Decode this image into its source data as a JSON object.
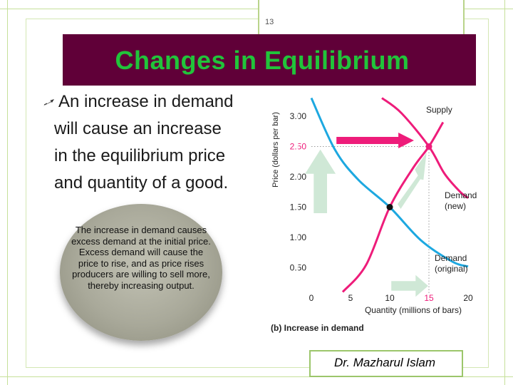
{
  "slide": {
    "page_number": "13",
    "title": "Changes in Equilibrium",
    "bullet": {
      "lines": [
        "An increase in demand",
        "will cause an increase",
        "in the equilibrium price",
        "and quantity of a good."
      ]
    },
    "callout": "The increase in demand causes excess demand at the initial price. Excess demand will cause the price to rise, and as price rises producers are willing to sell more, thereby increasing output.",
    "author": "Dr. Mazharul Islam"
  },
  "colors": {
    "title_bar": "#600038",
    "title_text": "#21c43a",
    "supply": "#ee1c7a",
    "demand": "#1da8e0",
    "arrow_pink": "#ee1c7a",
    "arrow_green": "#cfe8d6"
  },
  "chart_data": {
    "type": "line",
    "caption": "(b) Increase in demand",
    "xlabel": "Quantity (millions of bars)",
    "ylabel": "Price (dollars per bar)",
    "xlim": [
      0,
      20
    ],
    "ylim": [
      0,
      3.0
    ],
    "x_ticks": [
      "0",
      "5",
      "10",
      "15",
      "20"
    ],
    "y_ticks": [
      "0.50",
      "1.00",
      "1.50",
      "2.00",
      "2.50",
      "3.00"
    ],
    "highlight": {
      "x_tick": "15",
      "y_tick": "2.50"
    },
    "series": [
      {
        "name": "Supply",
        "points": [
          [
            4,
            0.1
          ],
          [
            7,
            0.55
          ],
          [
            10,
            1.5
          ],
          [
            13,
            2.15
          ],
          [
            15,
            2.5
          ],
          [
            16.8,
            2.9
          ]
        ]
      },
      {
        "name": "Demand (original)",
        "points": [
          [
            0,
            3.3
          ],
          [
            3,
            2.45
          ],
          [
            6,
            1.95
          ],
          [
            10,
            1.5
          ],
          [
            14,
            0.95
          ],
          [
            18,
            0.6
          ],
          [
            20,
            0.52
          ]
        ]
      },
      {
        "name": "Demand (new)",
        "points": [
          [
            9,
            3.3
          ],
          [
            11.5,
            3.05
          ],
          [
            15,
            2.5
          ],
          [
            17,
            2.05
          ],
          [
            19,
            1.75
          ],
          [
            20,
            1.65
          ]
        ]
      }
    ],
    "equilibria": [
      {
        "label": "original",
        "x": 10,
        "y": 1.5
      },
      {
        "label": "new",
        "x": 15,
        "y": 2.5
      }
    ],
    "legend_labels": {
      "supply": "Supply",
      "demand_new": [
        "Demand",
        "(new)"
      ],
      "demand_original": [
        "Demand",
        "(original)"
      ]
    }
  }
}
